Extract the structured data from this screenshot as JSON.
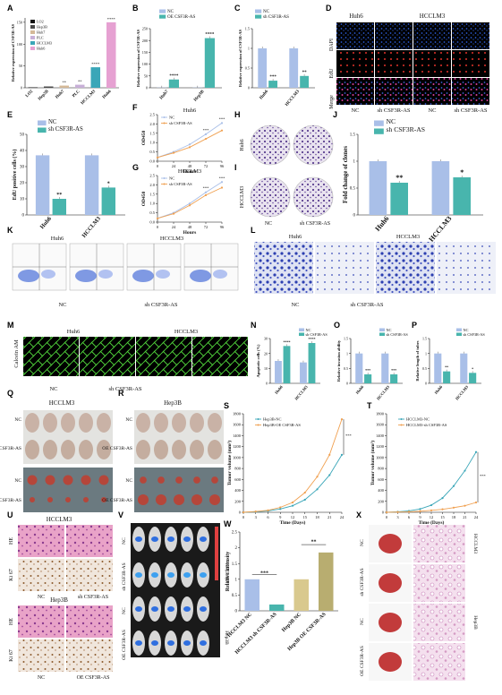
{
  "colors": {
    "nc": "#a9bfe8",
    "sh": "#48b5ad",
    "pink": "#e6a1d2",
    "orange": "#f0a050",
    "teal": "#3aa6b8",
    "gold": "#d9c98e"
  },
  "panel_letters": [
    "A",
    "B",
    "C",
    "D",
    "E",
    "F",
    "G",
    "H",
    "I",
    "J",
    "K",
    "L",
    "M",
    "N",
    "O",
    "P",
    "Q",
    "R",
    "S",
    "T",
    "U",
    "V",
    "W",
    "X"
  ],
  "chart_data": [
    {
      "panel": "A",
      "type": "bar",
      "ylabel": "Relative expression of CSF3R-AS",
      "categories": [
        "LO2",
        "Hep3B",
        "Huh7",
        "PLC",
        "HCCLM3",
        "Huh6"
      ],
      "values": [
        1,
        3,
        5,
        7,
        47,
        150
      ],
      "ylim": [
        0,
        160
      ],
      "yticks": [
        0,
        50,
        100,
        150
      ],
      "legend": [
        "LO2",
        "Hep3B",
        "Huh7",
        "PLC",
        "HCCLM3",
        "Huh6"
      ],
      "colors": [
        "#111111",
        "#4a4a4a",
        "#d4b998",
        "#c8b0d8",
        "#3aa6b8",
        "#e6a1d2"
      ],
      "sig": [
        "",
        "",
        "**",
        "**",
        "****",
        "****"
      ]
    },
    {
      "panel": "B",
      "type": "bar",
      "ylabel": "Relative expression of CSF3R-AS",
      "categories": [
        "Huh7",
        "Hep3B"
      ],
      "series": [
        {
          "name": "NC",
          "values": [
            1,
            1
          ]
        },
        {
          "name": "OE CSF3R-AS",
          "values": [
            35,
            210
          ]
        }
      ],
      "ylim": [
        0,
        250
      ],
      "yticks": [
        0,
        50,
        100,
        150,
        200,
        250
      ],
      "sig": [
        "****",
        "****"
      ]
    },
    {
      "panel": "C",
      "type": "bar",
      "ylabel": "Relative expression of CSF3R-AS",
      "categories": [
        "Huh6",
        "HCCLM3"
      ],
      "series": [
        {
          "name": "NC",
          "values": [
            1.0,
            1.0
          ]
        },
        {
          "name": "sh CSF3R-AS",
          "values": [
            0.18,
            0.3
          ]
        }
      ],
      "ylim": [
        0,
        1.5
      ],
      "yticks": [
        0.0,
        0.5,
        1.0,
        1.5
      ],
      "sig": [
        "***",
        "**"
      ]
    },
    {
      "panel": "E",
      "type": "bar",
      "ylabel": "EdU positive cells (%)",
      "categories": [
        "Huh6",
        "HCCLM3"
      ],
      "series": [
        {
          "name": "NC",
          "values": [
            37,
            37
          ]
        },
        {
          "name": "sh CSF3R-AS",
          "values": [
            10,
            17
          ]
        }
      ],
      "ylim": [
        0,
        50
      ],
      "yticks": [
        0,
        10,
        20,
        30,
        40,
        50
      ],
      "sig": [
        "**",
        "*"
      ]
    },
    {
      "panel": "F",
      "type": "line",
      "title": "Huh6",
      "xlabel": "Hours",
      "ylabel": "OD450",
      "x": [
        0,
        24,
        48,
        72,
        96
      ],
      "series": [
        {
          "name": "NC",
          "values": [
            0.2,
            0.5,
            0.9,
            1.45,
            2.05
          ]
        },
        {
          "name": "sh CSF3R-AS",
          "values": [
            0.2,
            0.45,
            0.75,
            1.2,
            1.65
          ]
        }
      ],
      "ylim": [
        0,
        2.5
      ],
      "yticks": [
        0.0,
        0.5,
        1.0,
        1.5,
        2.0,
        2.5
      ],
      "sig": [
        "",
        "",
        "",
        "***",
        "***"
      ]
    },
    {
      "panel": "G",
      "type": "line",
      "title": "HCCLM3",
      "xlabel": "Hours",
      "ylabel": "OD450",
      "x": [
        0,
        24,
        48,
        72,
        96
      ],
      "series": [
        {
          "name": "NC",
          "values": [
            0.2,
            0.5,
            1.0,
            1.6,
            2.15
          ]
        },
        {
          "name": "sh CSF3R-AS",
          "values": [
            0.2,
            0.45,
            0.9,
            1.45,
            1.85
          ]
        }
      ],
      "ylim": [
        0,
        2.5
      ],
      "yticks": [
        0.0,
        0.5,
        1.0,
        1.5,
        2.0,
        2.5
      ],
      "sig": [
        "",
        "",
        "",
        "***",
        "***"
      ]
    },
    {
      "panel": "J",
      "type": "bar",
      "ylabel": "Fold change of clones",
      "categories": [
        "Huh6",
        "HCCLM3"
      ],
      "series": [
        {
          "name": "NC",
          "values": [
            1.0,
            1.0
          ]
        },
        {
          "name": "sh CSF3R-AS",
          "values": [
            0.6,
            0.7
          ]
        }
      ],
      "ylim": [
        0,
        1.5
      ],
      "yticks": [
        0.0,
        0.5,
        1.0,
        1.5
      ],
      "sig": [
        "**",
        "*"
      ]
    },
    {
      "panel": "N",
      "type": "bar",
      "ylabel": "Apoptotic cells (%)",
      "categories": [
        "Huh6",
        "HCCLM3"
      ],
      "series": [
        {
          "name": "NC",
          "values": [
            15,
            14
          ]
        },
        {
          "name": "sh CSF3R-AS",
          "values": [
            25,
            27
          ]
        }
      ],
      "ylim": [
        0,
        30
      ],
      "yticks": [
        0,
        10,
        20,
        30
      ],
      "sig": [
        "****",
        "****"
      ]
    },
    {
      "panel": "O",
      "type": "bar",
      "ylabel": "Relative invasion ability",
      "categories": [
        "Huh6",
        "HCCLM3"
      ],
      "series": [
        {
          "name": "NC",
          "values": [
            1.0,
            1.0
          ]
        },
        {
          "name": "sh CSF3R-AS",
          "values": [
            0.3,
            0.3
          ]
        }
      ],
      "ylim": [
        0,
        1.5
      ],
      "yticks": [
        0.0,
        0.5,
        1.0,
        1.5
      ],
      "sig": [
        "***",
        "***"
      ]
    },
    {
      "panel": "P",
      "type": "bar",
      "ylabel": "Relative length of tubes",
      "categories": [
        "Huh6",
        "HCCLM3"
      ],
      "series": [
        {
          "name": "NC",
          "values": [
            1.0,
            1.0
          ]
        },
        {
          "name": "sh CSF3R-AS",
          "values": [
            0.4,
            0.35
          ]
        }
      ],
      "ylim": [
        0,
        1.5
      ],
      "yticks": [
        0.0,
        0.5,
        1.0,
        1.5
      ],
      "sig": [
        "**",
        "*"
      ]
    },
    {
      "panel": "S",
      "type": "line",
      "xlabel": "Time (Days)",
      "ylabel": "Tumor volume (mm³)",
      "x": [
        0,
        3,
        6,
        9,
        12,
        15,
        18,
        21,
        24
      ],
      "series": [
        {
          "name": "Hep3B-NC",
          "values": [
            0,
            10,
            25,
            60,
            120,
            230,
            420,
            680,
            1050
          ]
        },
        {
          "name": "Hep3B-OE CSF3R-AS",
          "values": [
            0,
            15,
            35,
            90,
            180,
            360,
            650,
            1050,
            1700
          ]
        }
      ],
      "ylim": [
        0,
        1800
      ],
      "yticks": [
        0,
        200,
        400,
        600,
        800,
        1000,
        1200,
        1400,
        1600,
        1800
      ],
      "sig_label": "***"
    },
    {
      "panel": "T",
      "type": "line",
      "xlabel": "Time (Days)",
      "ylabel": "Tumor volume (mm³)",
      "x": [
        0,
        3,
        6,
        9,
        12,
        15,
        18,
        21,
        24
      ],
      "series": [
        {
          "name": "HCCLM3-NC",
          "values": [
            0,
            10,
            25,
            60,
            130,
            260,
            480,
            760,
            1100
          ]
        },
        {
          "name": "HCCLM3-sh CSF3R-AS",
          "values": [
            0,
            5,
            10,
            20,
            35,
            55,
            85,
            120,
            180
          ]
        }
      ],
      "ylim": [
        0,
        1800
      ],
      "yticks": [
        0,
        200,
        400,
        600,
        800,
        1000,
        1200,
        1400,
        1600,
        1800
      ],
      "sig_label": "***"
    },
    {
      "panel": "W",
      "type": "bar",
      "ylabel": "Relative intensity",
      "categories": [
        "HCCLM3 NC",
        "HCCLM3 sh CSF3R-AS",
        "Hep3B NC",
        "Hep3B OE CSF3R-AS"
      ],
      "values": [
        1.0,
        0.2,
        1.0,
        1.85
      ],
      "colors": [
        "#a9bfe8",
        "#48b5ad",
        "#d9c98e",
        "#b8ad70"
      ],
      "ylim": [
        0,
        2.5
      ],
      "yticks": [
        0.0,
        0.5,
        1.0,
        1.5,
        2.0,
        2.5
      ],
      "sig": [
        "***",
        "**"
      ]
    }
  ],
  "labels": {
    "D_cols": [
      "Huh6",
      "HCCLM3"
    ],
    "D_rows": [
      "DAPI",
      "EdU",
      "Merge"
    ],
    "D_bottom": [
      "NC",
      "sh CSF3R-AS",
      "NC",
      "sh CSF3R-AS"
    ],
    "H_row": "Huh6",
    "I_row": "HCCLM3",
    "HI_bottom": [
      "NC",
      "sh CSF3R-AS"
    ],
    "K_cols": [
      "Huh6",
      "HCCLM3"
    ],
    "K_bottom": [
      "NC",
      "sh CSF3R-AS"
    ],
    "L_cols": [
      "Huh6",
      "HCCLM3"
    ],
    "L_bottom": [
      "NC",
      "sh CSF3R-AS"
    ],
    "M_side": "Calcein AM",
    "M_cols": [
      "Huh6",
      "HCCLM3"
    ],
    "M_bottom": [
      "NC",
      "sh CSF3R-AS"
    ],
    "Q_title": "HCCLM3",
    "Q_rows": [
      "NC",
      "sh CSF3R-AS",
      "NC",
      "sh CSF3R-AS"
    ],
    "R_title": "Hep3B",
    "R_rows": [
      "NC",
      "OE CSF3R-AS",
      "NC",
      "OE CSF3R-AS"
    ],
    "U_title1": "HCCLM3",
    "U_title2": "Hep3B",
    "U_rows": [
      "HE",
      "Ki 67",
      "HE",
      "Ki 67"
    ],
    "U_bottom1": [
      "NC",
      "sh CSF3R-AS"
    ],
    "U_bottom2": [
      "NC",
      "OE CSF3R-AS"
    ],
    "V_rows": [
      "NC",
      "sh CSF3R-AS",
      "NC",
      "OE CSF3R-AS"
    ],
    "V_side": [
      "HCCLM3",
      "Hep3B"
    ],
    "X_rows": [
      "NC",
      "sh CSF3R-AS",
      "NC",
      "OE CSF3R-AS"
    ],
    "X_side": [
      "HCCLM3",
      "Hep3B"
    ]
  }
}
